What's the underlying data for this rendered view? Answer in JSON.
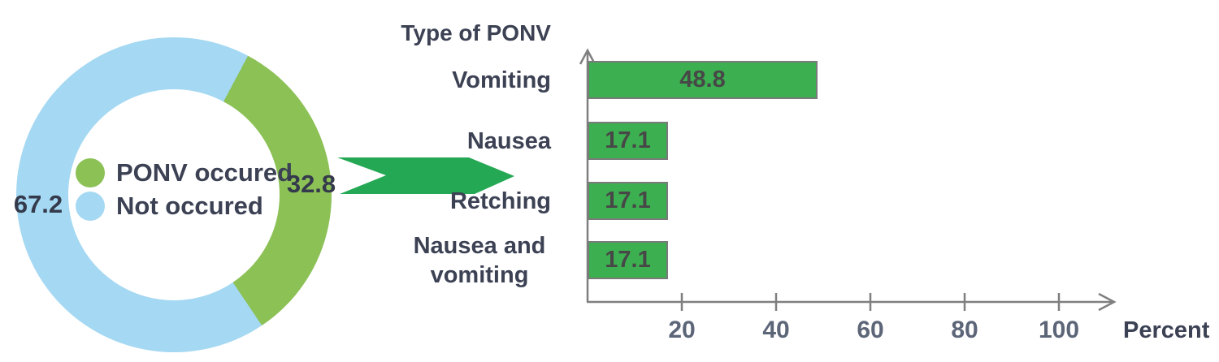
{
  "colors": {
    "donut_green": "#8cc156",
    "donut_blue": "#a5d8f2",
    "bar_green": "#3cb050",
    "bar_border": "#7a7a7a",
    "arrow_green": "#24a853",
    "axis_gray": "#7f7f7f",
    "label_dark": "#3c4254",
    "value_dark": "#474747",
    "tick_label": "#5c6678"
  },
  "chart_data": [
    {
      "type": "pie",
      "subtype": "donut",
      "segments": [
        {
          "label": "PONV occured",
          "value": 32.8,
          "color": "#8cc156"
        },
        {
          "label": "Not occured",
          "value": 67.2,
          "color": "#a5d8f2"
        }
      ],
      "legend_position": "center-of-donut",
      "value_labels": [
        "32.8",
        "67.2"
      ]
    },
    {
      "type": "bar",
      "orientation": "horizontal",
      "title": "Type of PONV",
      "categories": [
        "Vomiting",
        "Nausea",
        "Retching",
        "Nausea and vomiting"
      ],
      "values": [
        48.8,
        17.1,
        17.1,
        17.1
      ],
      "xlabel": "Percent",
      "xticks": [
        20,
        40,
        60,
        80,
        100
      ],
      "xlim": [
        0,
        112
      ],
      "grid": false,
      "legend": "none",
      "bar_color": "#3cb050"
    }
  ]
}
